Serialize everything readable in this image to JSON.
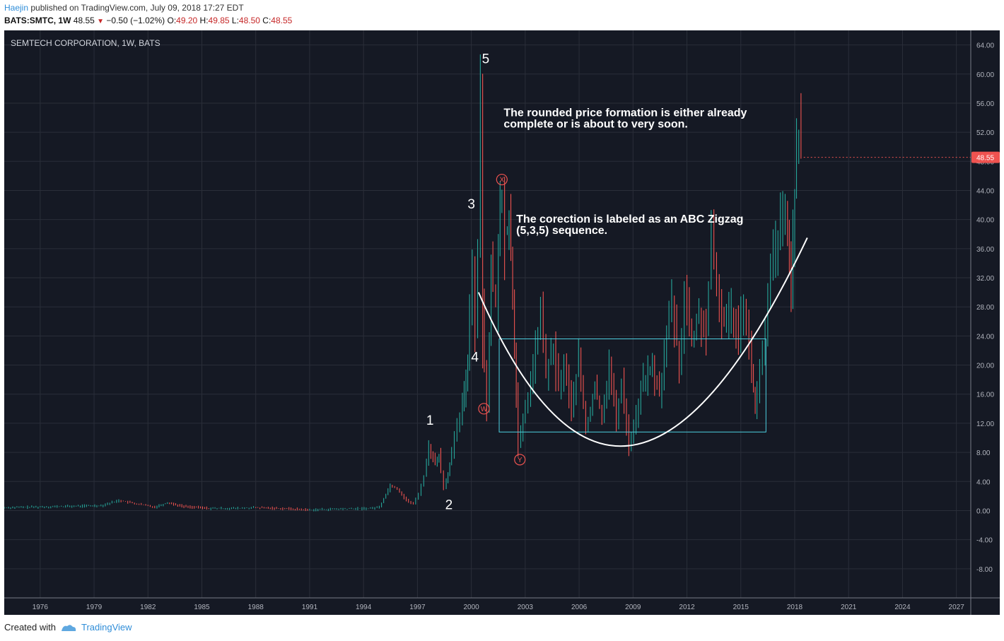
{
  "header": {
    "author": "Haejin",
    "published_text": "published on TradingView.com, July 09, 2018 17:27 EDT",
    "symbol": "BATS:SMTC, 1W",
    "last": "48.55",
    "change": "−0.50 (−1.02%)",
    "ohlc": {
      "o_label": "O:",
      "o": "49.20",
      "h_label": "H:",
      "h": "49.85",
      "l_label": "L:",
      "l": "48.50",
      "c_label": "C:",
      "c": "48.55"
    }
  },
  "chart_data": {
    "type": "line",
    "title": "SEMTECH CORPORATION, 1W, BATS",
    "ylim": [
      -12,
      66
    ],
    "xlim": [
      1974.0,
      2027.8
    ],
    "y_ticks": [
      "64.00",
      "60.00",
      "56.00",
      "52.00",
      "48.00",
      "44.00",
      "40.00",
      "36.00",
      "32.00",
      "28.00",
      "24.00",
      "20.00",
      "16.00",
      "12.00",
      "8.00",
      "4.00",
      "0.00",
      "-4.00",
      "-8.00"
    ],
    "y_tick_values": [
      64,
      60,
      56,
      52,
      48,
      44,
      40,
      36,
      32,
      28,
      24,
      20,
      16,
      12,
      8,
      4,
      0,
      -4,
      -8
    ],
    "x_ticks": [
      "1976",
      "1979",
      "1982",
      "1985",
      "1988",
      "1991",
      "1994",
      "1997",
      "2000",
      "2003",
      "2006",
      "2009",
      "2012",
      "2015",
      "2018",
      "2021",
      "2024",
      "2027"
    ],
    "x_tick_values": [
      1976,
      1979,
      1982,
      1985,
      1988,
      1991,
      1994,
      1997,
      2000,
      2003,
      2006,
      2009,
      2012,
      2015,
      2018,
      2021,
      2024,
      2027
    ],
    "last_price_label": "48.55",
    "last_price": 48.55,
    "grid": true,
    "series": [
      {
        "values": [
          [
            1974.0,
            0.4
          ],
          [
            1976.0,
            0.5
          ],
          [
            1978.0,
            0.6
          ],
          [
            1979.5,
            0.7
          ],
          [
            1980.5,
            1.4
          ],
          [
            1981.5,
            0.9
          ],
          [
            1982.5,
            0.5
          ],
          [
            1983.2,
            1.1
          ],
          [
            1984.0,
            0.6
          ],
          [
            1985.5,
            0.3
          ],
          [
            1987.0,
            0.3
          ],
          [
            1988.0,
            0.4
          ],
          [
            1989.5,
            0.3
          ],
          [
            1991.0,
            0.1
          ],
          [
            1992.5,
            0.2
          ],
          [
            1994.5,
            0.3
          ],
          [
            1995.0,
            0.5
          ],
          [
            1995.6,
            3.5
          ],
          [
            1996.0,
            3.0
          ],
          [
            1996.5,
            1.4
          ],
          [
            1996.9,
            0.9
          ],
          [
            1997.2,
            2.3
          ],
          [
            1997.5,
            4.8
          ],
          [
            1997.75,
            8.9
          ],
          [
            1998.1,
            6.3
          ],
          [
            1998.3,
            7.8
          ],
          [
            1998.6,
            3.2
          ],
          [
            1998.9,
            6.3
          ],
          [
            1999.2,
            9.8
          ],
          [
            1999.5,
            13.0
          ],
          [
            1999.7,
            16.0
          ],
          [
            1999.9,
            21.0
          ],
          [
            2000.05,
            28.0
          ],
          [
            2000.2,
            34.5
          ],
          [
            2000.35,
            24.0
          ],
          [
            2000.5,
            36.0
          ],
          [
            2000.63,
            60.0
          ],
          [
            2000.72,
            28.0
          ],
          [
            2000.85,
            20.0
          ],
          [
            2001.0,
            15.0
          ],
          [
            2001.2,
            33.0
          ],
          [
            2001.5,
            28.0
          ],
          [
            2001.7,
            42.0
          ],
          [
            2001.85,
            44.0
          ],
          [
            2002.0,
            38.0
          ],
          [
            2002.2,
            40.0
          ],
          [
            2002.4,
            30.0
          ],
          [
            2002.6,
            16.0
          ],
          [
            2002.75,
            9.0
          ],
          [
            2003.0,
            12.0
          ],
          [
            2003.3,
            16.0
          ],
          [
            2003.7,
            22.0
          ],
          [
            2004.0,
            27.0
          ],
          [
            2004.3,
            19.0
          ],
          [
            2004.7,
            22.0
          ],
          [
            2005.0,
            17.0
          ],
          [
            2005.3,
            20.0
          ],
          [
            2005.7,
            14.0
          ],
          [
            2006.1,
            21.0
          ],
          [
            2006.5,
            11.0
          ],
          [
            2007.0,
            17.0
          ],
          [
            2007.4,
            13.0
          ],
          [
            2007.8,
            20.0
          ],
          [
            2008.2,
            12.0
          ],
          [
            2008.5,
            18.0
          ],
          [
            2008.9,
            9.0
          ],
          [
            2009.3,
            13.0
          ],
          [
            2009.7,
            18.0
          ],
          [
            2010.2,
            19.5
          ],
          [
            2010.6,
            16.0
          ],
          [
            2011.0,
            24.0
          ],
          [
            2011.3,
            29.0
          ],
          [
            2011.7,
            19.5
          ],
          [
            2012.0,
            30.0
          ],
          [
            2012.4,
            23.0
          ],
          [
            2012.8,
            27.0
          ],
          [
            2013.2,
            24.5
          ],
          [
            2013.5,
            37.0
          ],
          [
            2013.8,
            30.0
          ],
          [
            2014.2,
            26.0
          ],
          [
            2014.6,
            27.5
          ],
          [
            2015.0,
            25.0
          ],
          [
            2015.3,
            29.0
          ],
          [
            2015.6,
            22.0
          ],
          [
            2015.9,
            14.0
          ],
          [
            2016.2,
            19.0
          ],
          [
            2016.5,
            24.0
          ],
          [
            2016.8,
            33.0
          ],
          [
            2017.2,
            38.0
          ],
          [
            2017.6,
            40.0
          ],
          [
            2017.9,
            32.0
          ],
          [
            2018.1,
            44.0
          ],
          [
            2018.35,
            51.5
          ],
          [
            2018.5,
            48.55
          ]
        ]
      }
    ],
    "wave_labels": [
      {
        "text": "5",
        "x": 2000.8,
        "y": 61.5
      },
      {
        "text": "3",
        "x": 2000.0,
        "y": 41.5
      },
      {
        "text": "4",
        "x": 2000.2,
        "y": 20.5
      },
      {
        "text": "1",
        "x": 1997.7,
        "y": 11.8
      },
      {
        "text": "2",
        "x": 1998.75,
        "y": 0.2
      }
    ],
    "circle_labels": [
      {
        "text": "X",
        "x": 2001.7,
        "y": 45.5
      },
      {
        "text": "W",
        "x": 2000.7,
        "y": 14.0
      },
      {
        "text": "Y",
        "x": 2002.7,
        "y": 7.0
      }
    ],
    "annotations": [
      {
        "lines": [
          "The rounded price formation is either already",
          "complete or is about to very soon."
        ],
        "x": 2001.8,
        "y": 54.2
      },
      {
        "lines": [
          "The corection is labeled as an ABC Zigzag",
          "(5,3,5) sequence."
        ],
        "x": 2002.5,
        "y": 39.6
      }
    ],
    "rectangle": {
      "x0": 2001.55,
      "x1": 2016.4,
      "y0": 10.8,
      "y1": 23.6
    },
    "arc": {
      "x0": 2000.4,
      "y0": 30.0,
      "xm": 2009.0,
      "ym": 9.0,
      "x1": 2018.7,
      "y1": 37.5
    }
  },
  "footer": {
    "created_with": "Created with",
    "brand": "TradingView"
  },
  "colors": {
    "bg": "#151924",
    "grid": "#2a2e39",
    "text": "#b2b5be",
    "up": "#26a69a",
    "down": "#ef5350",
    "rect": "#4dd0e1",
    "last_badge": "#ef5350"
  }
}
